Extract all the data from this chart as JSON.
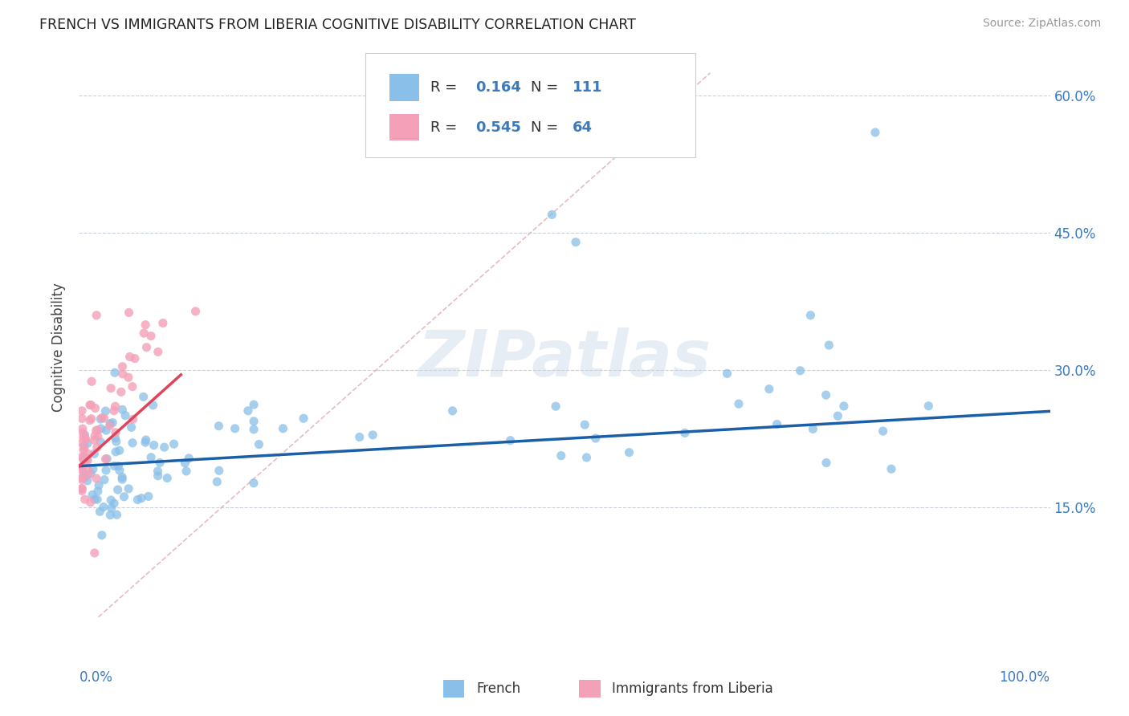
{
  "title": "FRENCH VS IMMIGRANTS FROM LIBERIA COGNITIVE DISABILITY CORRELATION CHART",
  "source": "Source: ZipAtlas.com",
  "ylabel": "Cognitive Disability",
  "blue_R": 0.164,
  "blue_N": 111,
  "pink_R": 0.545,
  "pink_N": 64,
  "blue_color": "#89bfe8",
  "pink_color": "#f4a0b8",
  "blue_line_color": "#1a5fa8",
  "pink_line_color": "#e0445a",
  "dashed_line_color": "#e0aab8",
  "watermark": "ZIPatlas",
  "legend_value_color": "#3a7abf",
  "xmin": 0.0,
  "xmax": 1.0,
  "ymin": 0.0,
  "ymax": 0.65,
  "ytick_positions": [
    0.0,
    0.15,
    0.3,
    0.45,
    0.6
  ],
  "ytick_labels": [
    "",
    "15.0%",
    "30.0%",
    "45.0%",
    "60.0%"
  ],
  "grid_color": "#c8d0da",
  "background_color": "#ffffff"
}
